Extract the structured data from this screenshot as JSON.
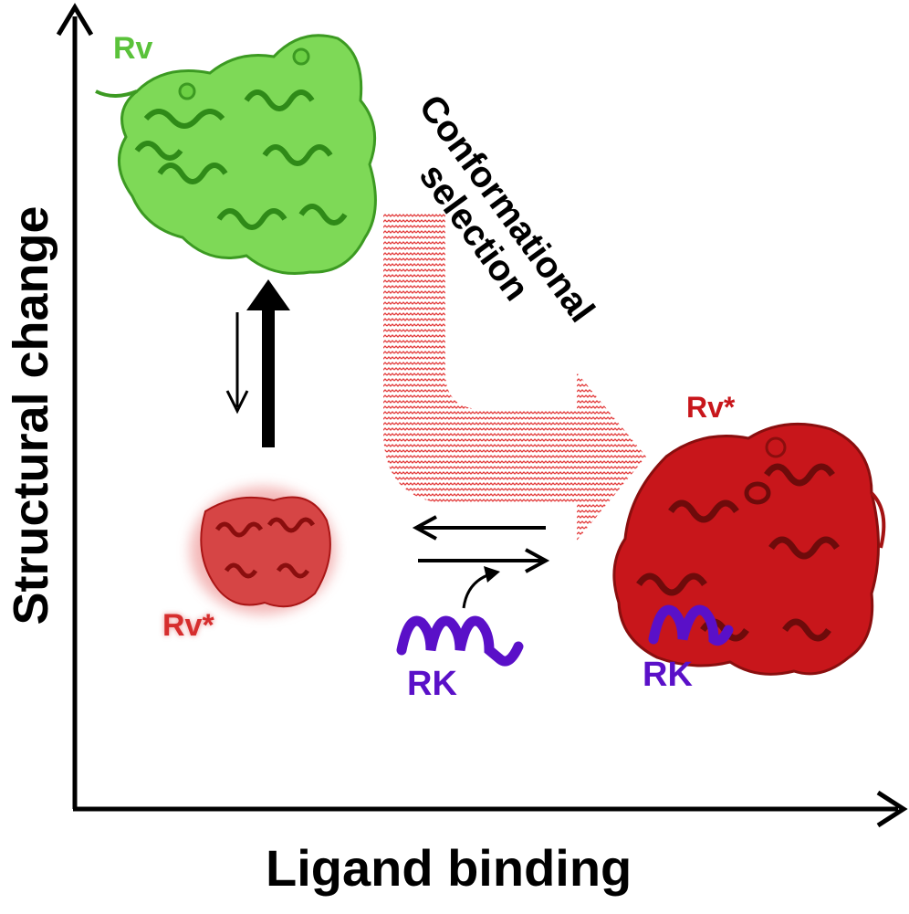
{
  "axes": {
    "y_title": "Structural change",
    "x_title": "Ligand binding"
  },
  "labels": {
    "rv_top": "Rv",
    "rv_star_left": "Rv*",
    "rv_star_right": "Rv*",
    "rk_left": "RK",
    "rk_right": "RK",
    "conformational_line1": "Conformational",
    "conformational_line2": "selection"
  },
  "colors": {
    "green_protein": "#5ac23a",
    "red_protein": "#c8161b",
    "purple_peptide": "#5a10c8",
    "axis": "#000000"
  },
  "icons": [
    "protein-rv-green",
    "protein-rv-star-small",
    "protein-rv-star-complex",
    "peptide-rk",
    "conformational-selection-arrow",
    "equilibrium-arrows"
  ]
}
